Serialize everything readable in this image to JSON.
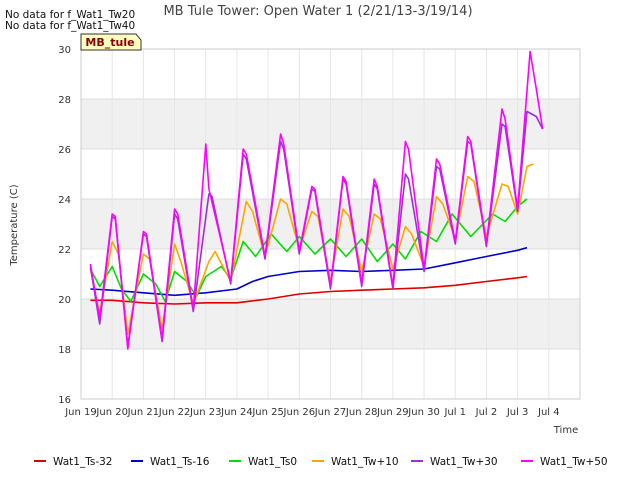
{
  "chart_data": {
    "type": "line",
    "title": "MB Tule Tower: Open Water 1 (2/21/13-3/19/14)",
    "xlabel": "Time",
    "ylabel": "Temperature (C)",
    "ylim": [
      16,
      30
    ],
    "yticks": [
      16,
      18,
      20,
      22,
      24,
      26,
      28,
      30
    ],
    "xlim": [
      0,
      16
    ],
    "xticks": [
      {
        "x": 0,
        "label": "Jun 19"
      },
      {
        "x": 1,
        "label": "Jun 20"
      },
      {
        "x": 2,
        "label": "Jun 21"
      },
      {
        "x": 3,
        "label": "Jun 22"
      },
      {
        "x": 4,
        "label": "Jun 23"
      },
      {
        "x": 5,
        "label": "Jun 24"
      },
      {
        "x": 6,
        "label": "Jun 25"
      },
      {
        "x": 7,
        "label": "Jun 26"
      },
      {
        "x": 8,
        "label": "Jun 27"
      },
      {
        "x": 9,
        "label": "Jun 28"
      },
      {
        "x": 10,
        "label": "Jun 29"
      },
      {
        "x": 11,
        "label": "Jun 30"
      },
      {
        "x": 12,
        "label": "Jul 1"
      },
      {
        "x": 13,
        "label": "Jul 2"
      },
      {
        "x": 14,
        "label": "Jul 3"
      },
      {
        "x": 15,
        "label": "Jul 4"
      }
    ],
    "no_data_notes": [
      "No data for f_Wat1_Tw20",
      "No data for f_Wat1_Tw40"
    ],
    "site_label": "MB_tule",
    "grid": true,
    "legend_placement": "bottom",
    "series": [
      {
        "name": "Wat1_Ts-32",
        "color": "#dd0000",
        "points": [
          [
            0.3,
            19.95
          ],
          [
            1,
            19.95
          ],
          [
            2,
            19.85
          ],
          [
            3,
            19.8
          ],
          [
            4,
            19.85
          ],
          [
            5,
            19.85
          ],
          [
            6,
            20.0
          ],
          [
            7,
            20.2
          ],
          [
            8,
            20.3
          ],
          [
            9,
            20.35
          ],
          [
            10,
            20.4
          ],
          [
            11,
            20.45
          ],
          [
            12,
            20.55
          ],
          [
            13,
            20.7
          ],
          [
            14,
            20.85
          ],
          [
            14.3,
            20.9
          ]
        ]
      },
      {
        "name": "Wat1_Ts-16",
        "color": "#0000cc",
        "points": [
          [
            0.3,
            20.4
          ],
          [
            1,
            20.35
          ],
          [
            2,
            20.25
          ],
          [
            3,
            20.15
          ],
          [
            4,
            20.25
          ],
          [
            5,
            20.4
          ],
          [
            5.5,
            20.7
          ],
          [
            6,
            20.9
          ],
          [
            7,
            21.1
          ],
          [
            8,
            21.15
          ],
          [
            9,
            21.1
          ],
          [
            10,
            21.15
          ],
          [
            11,
            21.2
          ],
          [
            12,
            21.45
          ],
          [
            13,
            21.7
          ],
          [
            14,
            21.95
          ],
          [
            14.3,
            22.05
          ]
        ]
      },
      {
        "name": "Wat1_Ts0",
        "color": "#00dd00",
        "points": [
          [
            0.3,
            21.2
          ],
          [
            0.6,
            20.5
          ],
          [
            1.0,
            21.3
          ],
          [
            1.3,
            20.4
          ],
          [
            1.6,
            19.9
          ],
          [
            2.0,
            21.0
          ],
          [
            2.4,
            20.6
          ],
          [
            2.7,
            19.9
          ],
          [
            3.0,
            21.1
          ],
          [
            3.4,
            20.7
          ],
          [
            3.7,
            20.1
          ],
          [
            4.0,
            20.9
          ],
          [
            4.5,
            21.3
          ],
          [
            4.8,
            20.8
          ],
          [
            5.2,
            22.3
          ],
          [
            5.6,
            21.7
          ],
          [
            6.1,
            22.6
          ],
          [
            6.6,
            21.9
          ],
          [
            7.0,
            22.5
          ],
          [
            7.5,
            21.8
          ],
          [
            8.0,
            22.4
          ],
          [
            8.5,
            21.7
          ],
          [
            9.0,
            22.4
          ],
          [
            9.5,
            21.5
          ],
          [
            10.0,
            22.2
          ],
          [
            10.4,
            21.6
          ],
          [
            10.9,
            22.7
          ],
          [
            11.4,
            22.3
          ],
          [
            11.9,
            23.4
          ],
          [
            12.5,
            22.5
          ],
          [
            13.2,
            23.4
          ],
          [
            13.6,
            23.1
          ],
          [
            14.0,
            23.7
          ],
          [
            14.3,
            24.0
          ]
        ]
      },
      {
        "name": "Wat1_Tw+10",
        "color": "#ffa500",
        "points": [
          [
            0.3,
            21.2
          ],
          [
            0.6,
            19.4
          ],
          [
            1.0,
            22.3
          ],
          [
            1.2,
            21.8
          ],
          [
            1.5,
            18.6
          ],
          [
            2.0,
            21.8
          ],
          [
            2.2,
            21.6
          ],
          [
            2.6,
            18.8
          ],
          [
            3.0,
            22.2
          ],
          [
            3.2,
            21.5
          ],
          [
            3.6,
            19.8
          ],
          [
            4.1,
            21.5
          ],
          [
            4.3,
            21.9
          ],
          [
            4.8,
            20.7
          ],
          [
            5.3,
            23.9
          ],
          [
            5.5,
            23.5
          ],
          [
            5.9,
            21.7
          ],
          [
            6.4,
            24.0
          ],
          [
            6.6,
            23.8
          ],
          [
            7.0,
            22.0
          ],
          [
            7.4,
            23.5
          ],
          [
            7.6,
            23.3
          ],
          [
            8.0,
            20.7
          ],
          [
            8.4,
            23.6
          ],
          [
            8.6,
            23.3
          ],
          [
            9.0,
            21.1
          ],
          [
            9.4,
            23.4
          ],
          [
            9.6,
            23.2
          ],
          [
            10.0,
            21.2
          ],
          [
            10.4,
            22.9
          ],
          [
            10.6,
            22.6
          ],
          [
            11.0,
            21.3
          ],
          [
            11.4,
            24.1
          ],
          [
            11.6,
            23.8
          ],
          [
            12.0,
            22.4
          ],
          [
            12.4,
            24.9
          ],
          [
            12.6,
            24.7
          ],
          [
            13.0,
            22.5
          ],
          [
            13.5,
            24.6
          ],
          [
            13.7,
            24.5
          ],
          [
            14.0,
            23.4
          ],
          [
            14.3,
            25.3
          ],
          [
            14.5,
            25.4
          ]
        ]
      },
      {
        "name": "Wat1_Tw+30",
        "color": "#9b30d9",
        "points": [
          [
            0.3,
            21.3
          ],
          [
            0.6,
            19.0
          ],
          [
            1.0,
            23.3
          ],
          [
            1.1,
            23.2
          ],
          [
            1.5,
            18.1
          ],
          [
            2.0,
            22.6
          ],
          [
            2.1,
            22.5
          ],
          [
            2.6,
            18.3
          ],
          [
            3.0,
            23.4
          ],
          [
            3.1,
            23.2
          ],
          [
            3.6,
            19.5
          ],
          [
            4.1,
            24.2
          ],
          [
            4.2,
            24.1
          ],
          [
            4.8,
            20.6
          ],
          [
            5.2,
            25.8
          ],
          [
            5.3,
            25.6
          ],
          [
            5.9,
            21.6
          ],
          [
            6.4,
            26.3
          ],
          [
            6.5,
            26.0
          ],
          [
            7.0,
            21.8
          ],
          [
            7.4,
            24.4
          ],
          [
            7.5,
            24.3
          ],
          [
            8.0,
            20.4
          ],
          [
            8.4,
            24.8
          ],
          [
            8.5,
            24.6
          ],
          [
            9.0,
            20.5
          ],
          [
            9.4,
            24.6
          ],
          [
            9.5,
            24.4
          ],
          [
            10.0,
            20.4
          ],
          [
            10.4,
            25.0
          ],
          [
            10.5,
            24.8
          ],
          [
            11.0,
            21.1
          ],
          [
            11.4,
            25.3
          ],
          [
            11.5,
            25.2
          ],
          [
            12.0,
            22.2
          ],
          [
            12.4,
            26.3
          ],
          [
            12.5,
            26.2
          ],
          [
            13.0,
            22.1
          ],
          [
            13.5,
            27.0
          ],
          [
            13.6,
            26.9
          ],
          [
            14.0,
            23.5
          ],
          [
            14.3,
            27.5
          ],
          [
            14.6,
            27.3
          ],
          [
            14.8,
            26.8
          ]
        ]
      },
      {
        "name": "Wat1_Tw+50",
        "color": "#ff00ff",
        "points": [
          [
            0.3,
            21.4
          ],
          [
            0.6,
            19.2
          ],
          [
            1.0,
            23.4
          ],
          [
            1.1,
            23.3
          ],
          [
            1.5,
            18.0
          ],
          [
            2.0,
            22.7
          ],
          [
            2.1,
            22.6
          ],
          [
            2.6,
            18.4
          ],
          [
            3.0,
            23.6
          ],
          [
            3.1,
            23.4
          ],
          [
            3.6,
            19.6
          ],
          [
            4.0,
            26.2
          ],
          [
            4.1,
            24.4
          ],
          [
            4.8,
            20.7
          ],
          [
            5.2,
            26.0
          ],
          [
            5.3,
            25.8
          ],
          [
            5.9,
            21.7
          ],
          [
            6.4,
            26.6
          ],
          [
            6.5,
            26.2
          ],
          [
            7.0,
            21.9
          ],
          [
            7.4,
            24.5
          ],
          [
            7.5,
            24.4
          ],
          [
            8.0,
            20.5
          ],
          [
            8.4,
            24.9
          ],
          [
            8.5,
            24.7
          ],
          [
            9.0,
            20.6
          ],
          [
            9.4,
            24.8
          ],
          [
            9.5,
            24.5
          ],
          [
            10.0,
            20.5
          ],
          [
            10.4,
            26.3
          ],
          [
            10.5,
            26.0
          ],
          [
            11.0,
            21.2
          ],
          [
            11.4,
            25.6
          ],
          [
            11.5,
            25.4
          ],
          [
            12.0,
            22.3
          ],
          [
            12.4,
            26.5
          ],
          [
            12.5,
            26.3
          ],
          [
            13.0,
            22.2
          ],
          [
            13.5,
            27.6
          ],
          [
            13.6,
            27.2
          ],
          [
            14.0,
            23.6
          ],
          [
            14.4,
            29.9
          ],
          [
            14.6,
            28.4
          ],
          [
            14.8,
            26.8
          ]
        ]
      }
    ]
  }
}
